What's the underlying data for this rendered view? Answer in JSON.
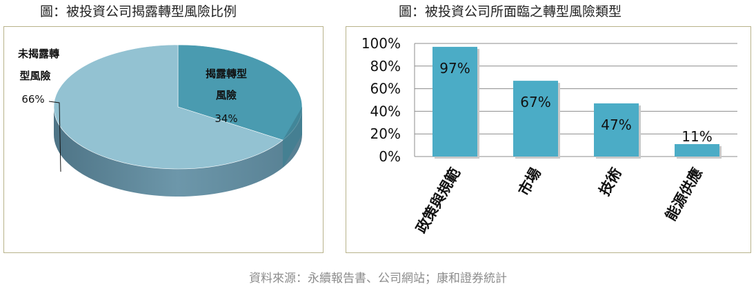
{
  "left_title": "圖：被投資公司揭露轉型風險比例",
  "right_title": "圖：被投資公司所面臨之轉型風險類型",
  "source": "資料來源：永續報告書、公司網站；康和證券統計",
  "colors": {
    "pie_disclosed": "#4a9bb0",
    "pie_not_disclosed": "#93c2d2",
    "pie_side": "#5f8a9e",
    "bar": "#4bacc6",
    "panel_border": "#b8b28a"
  },
  "chart_data": [
    {
      "type": "pie",
      "slices": [
        {
          "label_line1": "揭露轉型",
          "label_line2": "風險",
          "value": 34,
          "value_label": "34%"
        },
        {
          "label_line1": "未揭露轉",
          "label_line2": "型風險",
          "value": 66,
          "value_label": "66%"
        }
      ]
    },
    {
      "type": "bar",
      "categories": [
        "政策與規範",
        "市場",
        "技術",
        "能源供應"
      ],
      "values": [
        97,
        67,
        47,
        11
      ],
      "value_labels": [
        "97%",
        "67%",
        "47%",
        "11%"
      ],
      "ylim": [
        0,
        100
      ],
      "yticks": [
        0,
        20,
        40,
        60,
        80,
        100
      ],
      "ytick_labels": [
        "0%",
        "20%",
        "40%",
        "60%",
        "80%",
        "100%"
      ],
      "grid": true
    }
  ]
}
